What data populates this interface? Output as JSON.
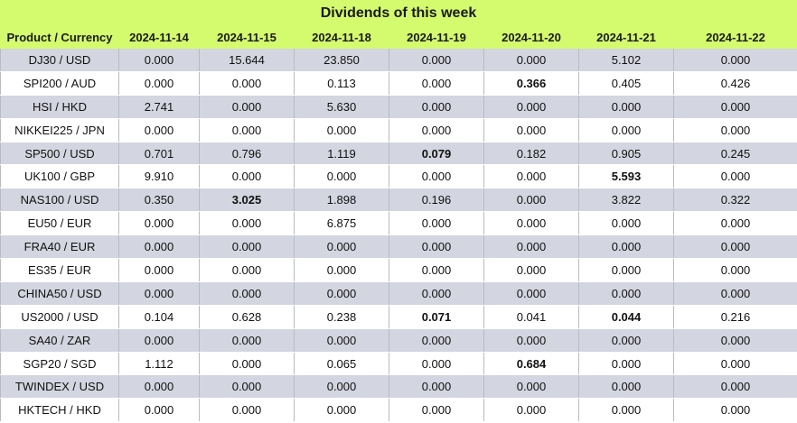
{
  "title": "Dividends of this week",
  "headers": [
    "Product / Currency",
    "2024-11-14",
    "2024-11-15",
    "2024-11-18",
    "2024-11-19",
    "2024-11-20",
    "2024-11-21",
    "2024-11-22"
  ],
  "rows": [
    {
      "product": "DJ30 / USD",
      "values": [
        "0.000",
        "15.644",
        "23.850",
        "0.000",
        "0.000",
        "5.102",
        "0.000"
      ],
      "bold": []
    },
    {
      "product": "SPI200 / AUD",
      "values": [
        "0.000",
        "0.000",
        "0.113",
        "0.000",
        "0.366",
        "0.405",
        "0.426"
      ],
      "bold": [
        4
      ]
    },
    {
      "product": "HSI / HKD",
      "values": [
        "2.741",
        "0.000",
        "5.630",
        "0.000",
        "0.000",
        "0.000",
        "0.000"
      ],
      "bold": []
    },
    {
      "product": "NIKKEI225 / JPN",
      "values": [
        "0.000",
        "0.000",
        "0.000",
        "0.000",
        "0.000",
        "0.000",
        "0.000"
      ],
      "bold": []
    },
    {
      "product": "SP500 / USD",
      "values": [
        "0.701",
        "0.796",
        "1.119",
        "0.079",
        "0.182",
        "0.905",
        "0.245"
      ],
      "bold": [
        3
      ]
    },
    {
      "product": "UK100 / GBP",
      "values": [
        "9.910",
        "0.000",
        "0.000",
        "0.000",
        "0.000",
        "5.593",
        "0.000"
      ],
      "bold": [
        5
      ]
    },
    {
      "product": "NAS100 / USD",
      "values": [
        "0.350",
        "3.025",
        "1.898",
        "0.196",
        "0.000",
        "3.822",
        "0.322"
      ],
      "bold": [
        1
      ]
    },
    {
      "product": "EU50 / EUR",
      "values": [
        "0.000",
        "0.000",
        "6.875",
        "0.000",
        "0.000",
        "0.000",
        "0.000"
      ],
      "bold": []
    },
    {
      "product": "FRA40 / EUR",
      "values": [
        "0.000",
        "0.000",
        "0.000",
        "0.000",
        "0.000",
        "0.000",
        "0.000"
      ],
      "bold": []
    },
    {
      "product": "ES35 / EUR",
      "values": [
        "0.000",
        "0.000",
        "0.000",
        "0.000",
        "0.000",
        "0.000",
        "0.000"
      ],
      "bold": []
    },
    {
      "product": "CHINA50 / USD",
      "values": [
        "0.000",
        "0.000",
        "0.000",
        "0.000",
        "0.000",
        "0.000",
        "0.000"
      ],
      "bold": []
    },
    {
      "product": "US2000 / USD",
      "values": [
        "0.104",
        "0.628",
        "0.238",
        "0.071",
        "0.041",
        "0.044",
        "0.216"
      ],
      "bold": [
        3,
        5
      ]
    },
    {
      "product": "SA40 / ZAR",
      "values": [
        "0.000",
        "0.000",
        "0.000",
        "0.000",
        "0.000",
        "0.000",
        "0.000"
      ],
      "bold": []
    },
    {
      "product": "SGP20 / SGD",
      "values": [
        "1.112",
        "0.000",
        "0.065",
        "0.000",
        "0.684",
        "0.000",
        "0.000"
      ],
      "bold": [
        4
      ]
    },
    {
      "product": "TWINDEX / USD",
      "values": [
        "0.000",
        "0.000",
        "0.000",
        "0.000",
        "0.000",
        "0.000",
        "0.000"
      ],
      "bold": []
    },
    {
      "product": "HKTECH / HKD",
      "values": [
        "0.000",
        "0.000",
        "0.000",
        "0.000",
        "0.000",
        "0.000",
        "0.000"
      ],
      "bold": []
    }
  ],
  "colors": {
    "header_bg": "#d4fa6e",
    "row_alt_bg": "#d3d5e0",
    "row_bg": "#ffffff"
  }
}
